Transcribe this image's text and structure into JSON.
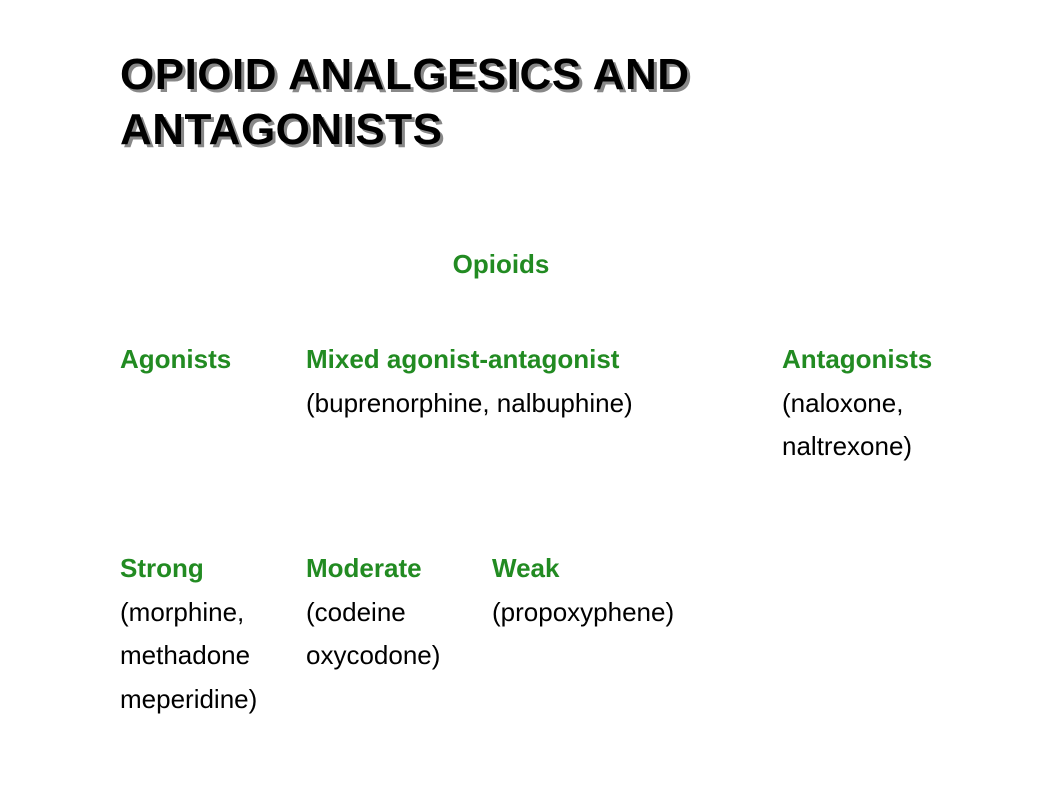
{
  "title": "OPIOID ANALGESICS AND ANTAGONISTS",
  "subtitle": "Opioids",
  "categories": {
    "agonists": {
      "label": "Agonists"
    },
    "mixed": {
      "label": "Mixed agonist-antagonist",
      "examples": "(buprenorphine, nalbuphine)"
    },
    "antagonists": {
      "label": "Antagonists",
      "examples_line1": "(naloxone,",
      "examples_line2": " naltrexone)"
    }
  },
  "subcategories": {
    "strong": {
      "label": "Strong",
      "line1": "(morphine,",
      "line2": "methadone",
      "line3": "meperidine)"
    },
    "moderate": {
      "label": "Moderate",
      "line1": "(codeine",
      "line2": "oxycodone)"
    },
    "weak": {
      "label": "Weak",
      "line1": "(propoxyphene)"
    }
  },
  "colors": {
    "heading_green": "#228b22",
    "body_text": "#000000",
    "title_shadow": "#888888",
    "background": "#ffffff"
  },
  "typography": {
    "title_fontsize": 44,
    "body_fontsize": 26,
    "title_weight": "bold",
    "label_weight": "bold"
  }
}
